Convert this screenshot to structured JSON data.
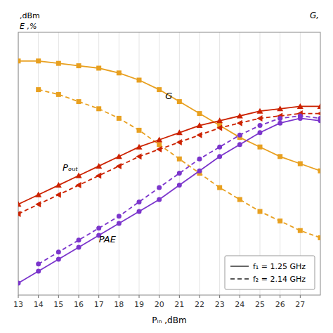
{
  "chart_data": {
    "type": "line",
    "xlabel": "Pᵢₙ ,dBm",
    "ylabel": [
      ",dBm",
      "E ,%"
    ],
    "y2label": "G,",
    "xlim": [
      13,
      28
    ],
    "xticks": [
      13,
      14,
      15,
      16,
      17,
      18,
      19,
      20,
      21,
      22,
      23,
      24,
      25,
      26,
      27
    ],
    "ylim": [
      -10,
      100
    ],
    "yticks": [],
    "tick_labels": "x",
    "grid": true,
    "legend": "lower right",
    "series": [
      {
        "name": "f₁ = 1.25 GHz",
        "color": "#E8A020",
        "marker": "square",
        "line_style": "solid",
        "x": [
          13,
          14,
          15,
          16,
          17,
          18,
          19,
          20,
          21,
          22,
          23,
          24,
          25,
          26,
          27,
          28
        ],
        "values": [
          88,
          88,
          87,
          86,
          85,
          83,
          80,
          76,
          71,
          66,
          61,
          56,
          52,
          48,
          45,
          42
        ]
      },
      {
        "name": "f₂ = 2.14 GHz",
        "color": "#E8A020",
        "marker": "square",
        "line_style": "dashed",
        "x": [
          14,
          15,
          16,
          17,
          18,
          19,
          20,
          21,
          22,
          23,
          24,
          25,
          26,
          27,
          28
        ],
        "values": [
          76,
          74,
          71,
          68,
          64,
          59,
          53,
          47,
          41,
          35,
          30,
          25,
          21,
          17,
          14
        ]
      },
      {
        "name": "f₁ = 1.25 GHz",
        "color": "#CC2200",
        "marker": "triangle-up",
        "line_style": "solid",
        "x": [
          13,
          14,
          15,
          16,
          17,
          18,
          19,
          20,
          21,
          22,
          23,
          24,
          25,
          26,
          27,
          28
        ],
        "values": [
          28,
          32,
          36,
          40,
          44,
          48,
          52,
          55,
          58,
          61,
          63,
          65,
          67,
          68,
          69,
          69
        ]
      },
      {
        "name": "f₂ = 2.14 GHz",
        "color": "#CC2200",
        "marker": "triangle-left",
        "line_style": "dashed",
        "x": [
          13,
          14,
          15,
          16,
          17,
          18,
          19,
          20,
          21,
          22,
          23,
          24,
          25,
          26,
          27,
          28
        ],
        "values": [
          24,
          28,
          32,
          36,
          40,
          44,
          48,
          51,
          54,
          57,
          60,
          62,
          64,
          65,
          66,
          66
        ]
      },
      {
        "name": "f₁ = 1.25 GHz",
        "color": "#7B35CC",
        "marker": "circle",
        "line_style": "solid",
        "x": [
          13,
          14,
          15,
          16,
          17,
          18,
          19,
          20,
          21,
          22,
          23,
          24,
          25,
          26,
          27,
          28
        ],
        "values": [
          -5,
          0,
          5,
          10,
          15,
          20,
          25,
          30,
          36,
          42,
          48,
          53,
          58,
          62,
          64,
          63
        ]
      },
      {
        "name": "f₂ = 2.14 GHz",
        "color": "#7B35CC",
        "marker": "circle",
        "line_style": "dashed",
        "x": [
          14,
          15,
          16,
          17,
          18,
          19,
          20,
          21,
          22,
          23,
          24,
          25,
          26,
          27,
          28
        ],
        "values": [
          3,
          8,
          13,
          18,
          23,
          29,
          35,
          41,
          47,
          52,
          57,
          61,
          64,
          65,
          64
        ]
      }
    ],
    "annotations": [
      {
        "text": "G",
        "x": 20.3,
        "y": 72
      },
      {
        "text": "Pₒᵤₜ",
        "x": 15.2,
        "y": 42
      },
      {
        "text": "PAE",
        "x": 17.0,
        "y": 12
      }
    ]
  }
}
